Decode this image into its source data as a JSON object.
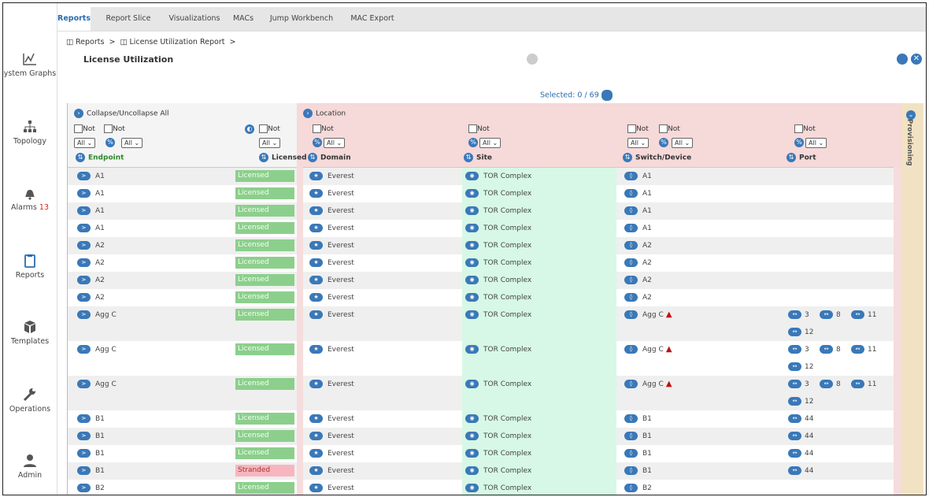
{
  "sidebar": [
    {
      "label": "System Graphs"
    },
    {
      "label": "Topology"
    },
    {
      "label": "Alarms",
      "badge": 13
    },
    {
      "label": "Reports"
    },
    {
      "label": "Templates"
    },
    {
      "label": "Operations"
    },
    {
      "label": "Admin"
    }
  ],
  "tabs": [
    "Reports",
    "Report Slice",
    "Visualizations",
    "MACs",
    "Jump Workbench",
    "MAC Export"
  ],
  "breadcrumb": [
    "Reports",
    "License Utilization Report"
  ],
  "title": "License Utilization",
  "selected": "Selected: 0 / 69",
  "groups": {
    "first": "Collapse/Uncollapse All",
    "location": "Location",
    "provisioning": "Provisioning"
  },
  "filter": {
    "not": "Not",
    "all": "All"
  },
  "columns": [
    "Endpoint",
    "Licensed",
    "Domain",
    "Site",
    "Switch/Device",
    "Port"
  ],
  "rows": [
    {
      "endpoint": "A1",
      "license": "Licensed",
      "domain": "Everest",
      "site": "TOR Complex",
      "device": "A1",
      "ports": [],
      "warning": false
    },
    {
      "endpoint": "A1",
      "license": "Licensed",
      "domain": "Everest",
      "site": "TOR Complex",
      "device": "A1",
      "ports": [],
      "warning": false
    },
    {
      "endpoint": "A1",
      "license": "Licensed",
      "domain": "Everest",
      "site": "TOR Complex",
      "device": "A1",
      "ports": [],
      "warning": false
    },
    {
      "endpoint": "A1",
      "license": "Licensed",
      "domain": "Everest",
      "site": "TOR Complex",
      "device": "A1",
      "ports": [],
      "warning": false
    },
    {
      "endpoint": "A2",
      "license": "Licensed",
      "domain": "Everest",
      "site": "TOR Complex",
      "device": "A2",
      "ports": [],
      "warning": false
    },
    {
      "endpoint": "A2",
      "license": "Licensed",
      "domain": "Everest",
      "site": "TOR Complex",
      "device": "A2",
      "ports": [],
      "warning": false
    },
    {
      "endpoint": "A2",
      "license": "Licensed",
      "domain": "Everest",
      "site": "TOR Complex",
      "device": "A2",
      "ports": [],
      "warning": false
    },
    {
      "endpoint": "A2",
      "license": "Licensed",
      "domain": "Everest",
      "site": "TOR Complex",
      "device": "A2",
      "ports": [],
      "warning": false
    },
    {
      "endpoint": "Agg C",
      "license": "Licensed",
      "domain": "Everest",
      "site": "TOR Complex",
      "device": "Agg C",
      "ports": [
        3,
        8,
        11,
        12
      ],
      "warning": true
    },
    {
      "endpoint": "Agg C",
      "license": "Licensed",
      "domain": "Everest",
      "site": "TOR Complex",
      "device": "Agg C",
      "ports": [
        3,
        8,
        11,
        12
      ],
      "warning": true
    },
    {
      "endpoint": "Agg C",
      "license": "Licensed",
      "domain": "Everest",
      "site": "TOR Complex",
      "device": "Agg C",
      "ports": [
        3,
        8,
        11,
        12
      ],
      "warning": true
    },
    {
      "endpoint": "B1",
      "license": "Licensed",
      "domain": "Everest",
      "site": "TOR Complex",
      "device": "B1",
      "ports": [
        44
      ],
      "warning": false
    },
    {
      "endpoint": "B1",
      "license": "Licensed",
      "domain": "Everest",
      "site": "TOR Complex",
      "device": "B1",
      "ports": [
        44
      ],
      "warning": false
    },
    {
      "endpoint": "B1",
      "license": "Licensed",
      "domain": "Everest",
      "site": "TOR Complex",
      "device": "B1",
      "ports": [
        44
      ],
      "warning": false
    },
    {
      "endpoint": "B1",
      "license": "Stranded",
      "domain": "Everest",
      "site": "TOR Complex",
      "device": "B1",
      "ports": [
        44
      ],
      "warning": false
    },
    {
      "endpoint": "B2",
      "license": "Licensed",
      "domain": "Everest",
      "site": "TOR Complex",
      "device": "B2",
      "ports": [],
      "warning": false
    }
  ]
}
